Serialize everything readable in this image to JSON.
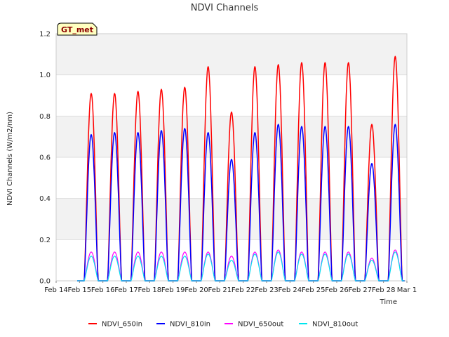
{
  "chart_data": {
    "type": "line",
    "title": "NDVI Channels",
    "xlabel": "Time",
    "ylabel": "NDVI Channels (W/m2/nm)",
    "badge": "GT_met",
    "ylim": [
      0,
      1.2
    ],
    "yticks": [
      "0.0",
      "0.2",
      "0.4",
      "0.6",
      "0.8",
      "1.0",
      "1.2"
    ],
    "xlim": [
      14,
      29
    ],
    "xticks": [
      {
        "v": 14,
        "label": "Feb 14"
      },
      {
        "v": 15,
        "label": "Feb 15"
      },
      {
        "v": 16,
        "label": "Feb 16"
      },
      {
        "v": 17,
        "label": "Feb 17"
      },
      {
        "v": 18,
        "label": "Feb 18"
      },
      {
        "v": 19,
        "label": "Feb 19"
      },
      {
        "v": 20,
        "label": "Feb 20"
      },
      {
        "v": 21,
        "label": "Feb 21"
      },
      {
        "v": 22,
        "label": "Feb 22"
      },
      {
        "v": 23,
        "label": "Feb 23"
      },
      {
        "v": 24,
        "label": "Feb 24"
      },
      {
        "v": 25,
        "label": "Feb 25"
      },
      {
        "v": 26,
        "label": "Feb 26"
      },
      {
        "v": 27,
        "label": "Feb 27"
      },
      {
        "v": 28,
        "label": "Feb 28"
      },
      {
        "v": 29,
        "label": "Mar 1"
      }
    ],
    "day_peaks": {
      "days": [
        15,
        16,
        17,
        18,
        19,
        20,
        21,
        22,
        23,
        24,
        25,
        26,
        27,
        28
      ],
      "NDVI_650in": [
        0.91,
        0.91,
        0.92,
        0.93,
        0.94,
        1.04,
        0.82,
        1.04,
        1.05,
        1.06,
        1.06,
        1.06,
        0.76,
        1.09
      ],
      "NDVI_810in": [
        0.71,
        0.72,
        0.72,
        0.73,
        0.74,
        0.72,
        0.59,
        0.72,
        0.76,
        0.75,
        0.75,
        0.75,
        0.57,
        0.76
      ],
      "NDVI_650out": [
        0.14,
        0.14,
        0.14,
        0.14,
        0.14,
        0.14,
        0.12,
        0.14,
        0.15,
        0.14,
        0.14,
        0.14,
        0.11,
        0.15
      ],
      "NDVI_810out": [
        0.12,
        0.12,
        0.12,
        0.12,
        0.12,
        0.13,
        0.1,
        0.13,
        0.14,
        0.13,
        0.13,
        0.13,
        0.1,
        0.14
      ]
    },
    "series": [
      {
        "name": "NDVI_650in",
        "color": "#ff0000"
      },
      {
        "name": "NDVI_810in",
        "color": "#0000ff"
      },
      {
        "name": "NDVI_650out",
        "color": "#ff00ff"
      },
      {
        "name": "NDVI_810out",
        "color": "#00e5ee"
      }
    ],
    "legend_position": "bottom-center"
  }
}
